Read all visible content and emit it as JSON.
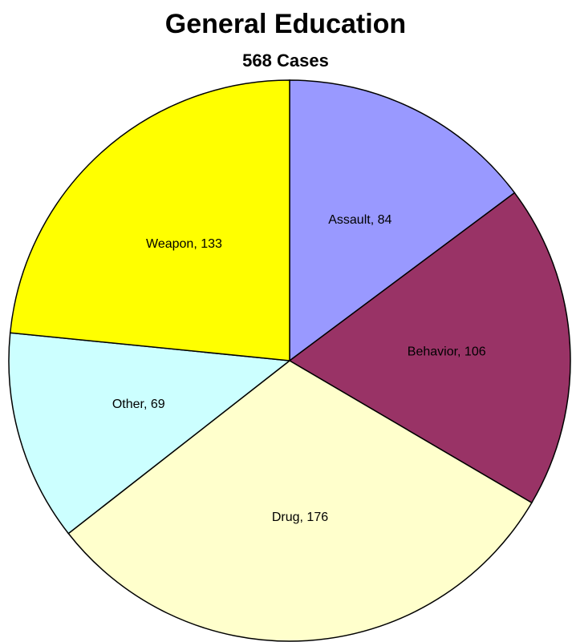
{
  "chart_data": {
    "type": "pie",
    "title": "General Education",
    "subtitle": "568 Cases",
    "categories": [
      "Assault",
      "Behavior",
      "Drug",
      "Other",
      "Weapon"
    ],
    "values": [
      84,
      106,
      176,
      69,
      133
    ],
    "value_labels": [
      "Assault, 84",
      "Behavior, 106",
      "Drug, 176",
      "Other, 69",
      "Weapon, 133"
    ],
    "colors": [
      "#9999ff",
      "#993366",
      "#ffffcc",
      "#ccffff",
      "#ffff00"
    ]
  }
}
